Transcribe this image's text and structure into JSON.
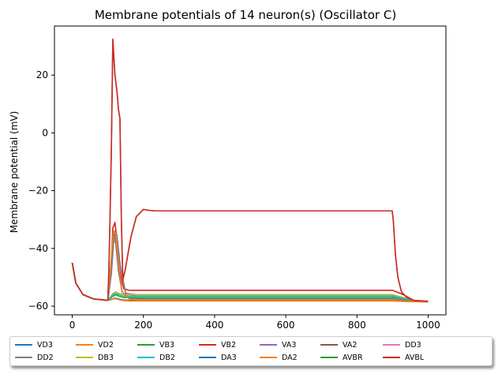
{
  "chart_data": {
    "type": "line",
    "title": "Membrane potentials of 14 neuron(s) (Oscillator C)",
    "xlabel": "",
    "ylabel": "Membrane potential (mV)",
    "xlim": [
      -50,
      1050
    ],
    "ylim": [
      -63,
      37
    ],
    "xticks": [
      0,
      200,
      400,
      600,
      800,
      1000
    ],
    "yticks": [
      -60,
      -40,
      -20,
      0,
      20
    ],
    "grid": false,
    "legend_position": "bottom, below axes, 7 columns",
    "series": [
      {
        "name": "VD3",
        "color": "#1f77b4",
        "x": [
          0,
          10,
          30,
          60,
          100,
          115,
          120,
          130,
          140,
          160,
          200,
          900,
          940,
          1000
        ],
        "y": [
          -45,
          -52,
          -56,
          -57.5,
          -58,
          -57.5,
          -57.2,
          -57.5,
          -57.8,
          -58,
          -58,
          -58,
          -58.3,
          -58.5
        ]
      },
      {
        "name": "VD2",
        "color": "#ff7f0e",
        "x": [
          0,
          10,
          30,
          60,
          100,
          115,
          120,
          130,
          140,
          160,
          200,
          900,
          940,
          1000
        ],
        "y": [
          -45,
          -52,
          -56,
          -57.5,
          -58,
          -57.6,
          -57.4,
          -57.7,
          -58,
          -58.2,
          -58.2,
          -58.2,
          -58.4,
          -58.5
        ]
      },
      {
        "name": "VB3",
        "color": "#2ca02c",
        "x": [
          0,
          10,
          30,
          60,
          100,
          115,
          122,
          130,
          145,
          170,
          200,
          900,
          930,
          960,
          1000
        ],
        "y": [
          -45,
          -52,
          -56,
          -57.5,
          -58,
          -56.5,
          -56,
          -56.5,
          -57,
          -57,
          -57,
          -57,
          -57.5,
          -58.2,
          -58.5
        ]
      },
      {
        "name": "VB2",
        "color": "#d62728",
        "x": [
          0,
          10,
          30,
          60,
          100,
          108,
          114,
          120,
          130,
          138,
          145,
          160,
          180,
          900,
          930,
          960,
          1000
        ],
        "y": [
          -45,
          -52,
          -56,
          -57.5,
          -58,
          -50,
          -33,
          -31,
          -42,
          -51,
          -54,
          -54.5,
          -54.5,
          -54.5,
          -56,
          -58,
          -58.5
        ]
      },
      {
        "name": "VA3",
        "color": "#9467bd",
        "x": [
          0,
          10,
          30,
          60,
          100,
          108,
          116,
          122,
          130,
          140,
          160,
          200,
          900,
          930,
          1000
        ],
        "y": [
          -45,
          -52,
          -56,
          -57.5,
          -58,
          -48,
          -37,
          -38,
          -48,
          -55,
          -57.5,
          -57.8,
          -57.8,
          -58.2,
          -58.5
        ]
      },
      {
        "name": "VA2",
        "color": "#8c564b",
        "x": [
          0,
          10,
          30,
          60,
          100,
          108,
          116,
          122,
          130,
          140,
          160,
          200,
          900,
          930,
          1000
        ],
        "y": [
          -45,
          -52,
          -56,
          -57.5,
          -58,
          -47,
          -36,
          -37,
          -47,
          -55,
          -57.5,
          -57.8,
          -57.8,
          -58.2,
          -58.5
        ]
      },
      {
        "name": "DD3",
        "color": "#e377c2",
        "x": [
          0,
          10,
          30,
          60,
          100,
          110,
          118,
          125,
          135,
          150,
          180,
          900,
          930,
          1000
        ],
        "y": [
          -45,
          -52,
          -56,
          -57.5,
          -58,
          -49,
          -35,
          -36,
          -47,
          -55.5,
          -56,
          -56,
          -57.5,
          -58.5
        ]
      },
      {
        "name": "DD2",
        "color": "#7f7f7f",
        "x": [
          0,
          10,
          30,
          60,
          100,
          110,
          118,
          125,
          135,
          150,
          180,
          900,
          930,
          1000
        ],
        "y": [
          -45,
          -52,
          -56,
          -57.5,
          -58,
          -48,
          -34,
          -35,
          -46,
          -55.5,
          -56.5,
          -56.5,
          -57.8,
          -58.5
        ]
      },
      {
        "name": "DB3",
        "color": "#bcbd22",
        "x": [
          0,
          10,
          30,
          60,
          100,
          115,
          122,
          130,
          145,
          170,
          200,
          900,
          930,
          960,
          1000
        ],
        "y": [
          -45,
          -52,
          -56,
          -57.5,
          -58,
          -55.5,
          -55,
          -55.5,
          -56,
          -56,
          -56,
          -56,
          -57,
          -58.2,
          -58.5
        ]
      },
      {
        "name": "DB2",
        "color": "#17becf",
        "x": [
          0,
          10,
          30,
          60,
          100,
          115,
          122,
          130,
          145,
          170,
          200,
          900,
          930,
          960,
          1000
        ],
        "y": [
          -45,
          -52,
          -56,
          -57.5,
          -58,
          -56,
          -55.6,
          -56,
          -56.5,
          -56.5,
          -56.5,
          -56.5,
          -57.3,
          -58.2,
          -58.5
        ]
      },
      {
        "name": "DA3",
        "color": "#1f77b4",
        "x": [
          0,
          10,
          30,
          60,
          100,
          108,
          116,
          122,
          130,
          140,
          160,
          200,
          900,
          930,
          1000
        ],
        "y": [
          -45,
          -52,
          -56,
          -57.5,
          -58,
          -47,
          -35,
          -36,
          -47,
          -55,
          -57.3,
          -57.5,
          -57.5,
          -58,
          -58.5
        ]
      },
      {
        "name": "DA2",
        "color": "#ff7f0e",
        "x": [
          0,
          10,
          30,
          60,
          100,
          108,
          116,
          122,
          130,
          140,
          160,
          200,
          900,
          930,
          1000
        ],
        "y": [
          -45,
          -52,
          -56,
          -57.5,
          -58,
          -46,
          -34,
          -35,
          -46,
          -55,
          -57.5,
          -57.8,
          -57.8,
          -58.2,
          -58.5
        ]
      },
      {
        "name": "AVBR",
        "color": "#2ca02c",
        "x": [
          0,
          10,
          30,
          60,
          100,
          103,
          106,
          110,
          114,
          120,
          126,
          130,
          134,
          138,
          142,
          148,
          155,
          165,
          180,
          200,
          215,
          230,
          260,
          300,
          500,
          700,
          899,
          902,
          908,
          915,
          925,
          940,
          960,
          1000
        ],
        "y": [
          -45,
          -52,
          -56,
          -57.5,
          -58,
          -47,
          -30,
          -5,
          32,
          20,
          14,
          8,
          5,
          -30,
          -50,
          -48,
          -43,
          -36,
          -29,
          -26.5,
          -26.8,
          -27,
          -27,
          -27,
          -27,
          -27,
          -27,
          -30,
          -42,
          -50,
          -55,
          -57,
          -58,
          -58.3
        ]
      },
      {
        "name": "AVBL",
        "color": "#d62728",
        "x": [
          0,
          10,
          30,
          60,
          100,
          103,
          106,
          110,
          114,
          120,
          126,
          130,
          134,
          138,
          142,
          148,
          155,
          165,
          180,
          200,
          215,
          230,
          260,
          300,
          500,
          700,
          899,
          902,
          908,
          915,
          925,
          940,
          960,
          1000
        ],
        "y": [
          -45,
          -52,
          -56,
          -57.5,
          -58,
          -47,
          -30,
          -5,
          32.5,
          20,
          14,
          8,
          5,
          -30,
          -51,
          -48,
          -43,
          -36,
          -29,
          -26.5,
          -26.8,
          -27,
          -27,
          -27,
          -27,
          -27,
          -27,
          -30,
          -42,
          -50,
          -55,
          -57,
          -58,
          -58.3
        ]
      }
    ]
  }
}
